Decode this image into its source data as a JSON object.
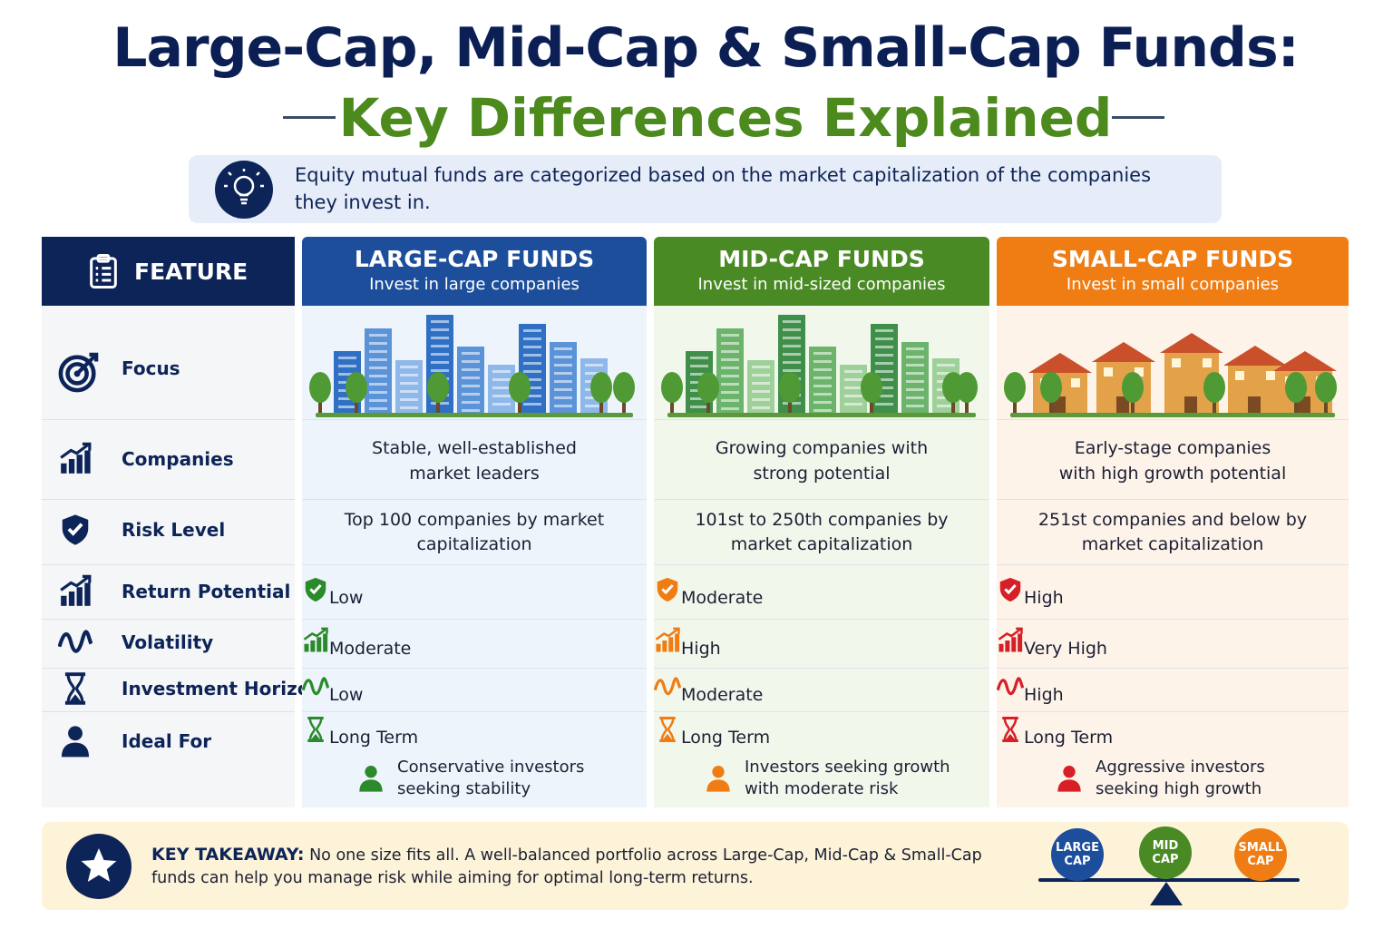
{
  "header": {
    "title": "Large-Cap, Mid-Cap & Small-Cap Funds:",
    "subtitle": "Key Differences Explained"
  },
  "intro": "Equity mutual funds are categorized based on the market capitalization of the companies they invest in.",
  "table": {
    "feature_header": "FEATURE",
    "features": [
      "Focus",
      "Companies",
      "Risk Level",
      "Return Potential",
      "Volatility",
      "Investment Horizon",
      "Ideal For"
    ],
    "funds": [
      {
        "name": "LARGE-CAP FUNDS",
        "tagline": "Invest in large companies",
        "companies": "Stable, well-established market leaders",
        "ranking": "Top 100 companies by market capitalization",
        "risk": "Low",
        "returns": "Moderate",
        "volatility": "Low",
        "horizon": "Long Term",
        "ideal": "Conservative investors seeking stability"
      },
      {
        "name": "MID-CAP FUNDS",
        "tagline": "Invest in mid-sized companies",
        "companies": "Growing companies with strong potential",
        "ranking": "101st to 250th companies by market capitalization",
        "risk": "Moderate",
        "returns": "High",
        "volatility": "Moderate",
        "horizon": "Long Term",
        "ideal": "Investors seeking growth with moderate risk"
      },
      {
        "name": "SMALL-CAP FUNDS",
        "tagline": "Invest in small companies",
        "companies": "Early-stage companies with high growth potential",
        "ranking": "251st companies and below by market capitalization",
        "risk": "High",
        "returns": "Very High",
        "volatility": "High",
        "horizon": "Long Term",
        "ideal": "Aggressive investors seeking high growth"
      }
    ]
  },
  "takeaway": {
    "label": "KEY TAKEAWAY:",
    "text": "No one size fits all. A well-balanced portfolio across Large-Cap, Mid-Cap & Small-Cap funds can help you manage risk while aiming for optimal long-term returns.",
    "badges": [
      "LARGE CAP",
      "MID CAP",
      "SMALL CAP"
    ]
  }
}
